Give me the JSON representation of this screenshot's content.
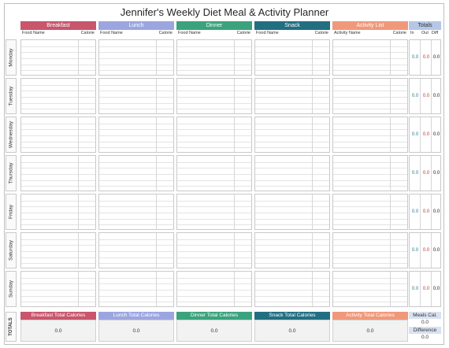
{
  "title": "Jennifer's Weekly Diet Meal & Activity Planner",
  "meals": [
    {
      "label": "Breakfast",
      "color": "#c8566d",
      "col1": "Food Name",
      "col2": "Calorie"
    },
    {
      "label": "Lunch",
      "color": "#9ba6e0",
      "col1": "Food Name",
      "col2": "Calorie"
    },
    {
      "label": "Dinner",
      "color": "#3aa37e",
      "col1": "Food Name",
      "col2": "Calorie"
    },
    {
      "label": "Snack",
      "color": "#226f82",
      "col1": "Food Name",
      "col2": "Calorie"
    },
    {
      "label": "Activity List",
      "color": "#f0987a",
      "col1": "Activity Name",
      "col2": "Calorie"
    }
  ],
  "totals_header": {
    "label": "Totals",
    "color": "#b5c7e6",
    "in": "In",
    "out": "Out",
    "diff": "Diff"
  },
  "days": [
    {
      "name": "Monday",
      "in": "0.0",
      "out": "0.0",
      "diff": "0.0"
    },
    {
      "name": "Tuesday",
      "in": "0.0",
      "out": "0.0",
      "diff": "0.0"
    },
    {
      "name": "Wednesday",
      "in": "0.0",
      "out": "0.0",
      "diff": "0.0"
    },
    {
      "name": "Thursday",
      "in": "0.0",
      "out": "0.0",
      "diff": "0.0"
    },
    {
      "name": "Friday",
      "in": "0.0",
      "out": "0.0",
      "diff": "0.0"
    },
    {
      "name": "Saturday",
      "in": "0.0",
      "out": "0.0",
      "diff": "0.0"
    },
    {
      "name": "Sunday",
      "in": "0.0",
      "out": "0.0",
      "diff": "0.0"
    }
  ],
  "colors": {
    "in": "#2e7a8c",
    "out": "#c0392b",
    "diff": "#222222"
  },
  "totals": {
    "label": "TOTALS",
    "items": [
      {
        "label": "Breakfast Total Calories",
        "value": "0.0"
      },
      {
        "label": "Lunch Total Calories",
        "value": "0.0"
      },
      {
        "label": "Dinner Total Calories",
        "value": "0.0"
      },
      {
        "label": "Snack Total Calories",
        "value": "0.0"
      },
      {
        "label": "Activity Total Calories",
        "value": "0.0"
      }
    ],
    "meals_cal_label": "Meals Cal.",
    "meals_cal_value": "0.0",
    "difference_label": "Difference",
    "difference_value": "0.0"
  }
}
